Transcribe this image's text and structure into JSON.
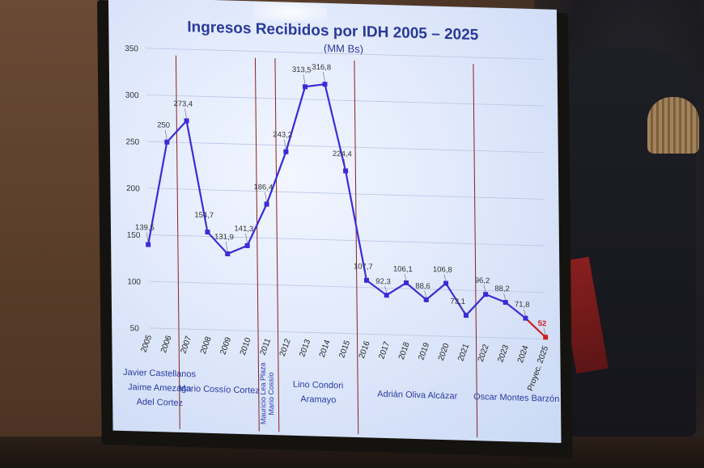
{
  "chart_data": {
    "type": "line",
    "title": "Ingresos Recibidos por IDH 2005 – 2025",
    "subtitle": "(MM Bs)",
    "xlabel": "",
    "ylabel": "",
    "ylim": [
      50,
      350
    ],
    "yticks": [
      "350",
      "300",
      "250",
      "200",
      "150",
      "100",
      "50"
    ],
    "categories": [
      "2005",
      "2006",
      "2007",
      "2008",
      "2009",
      "2010",
      "2011",
      "2012",
      "2013",
      "2014",
      "2015",
      "2016",
      "2017",
      "2018",
      "2019",
      "2020",
      "2021",
      "2022",
      "2023",
      "2024",
      "2025"
    ],
    "category_labels": [
      "2005",
      "2006",
      "2007",
      "2008",
      "2009",
      "2010",
      "2011",
      "2012",
      "2013",
      "2014",
      "2015",
      "2016",
      "2017",
      "2018",
      "2019",
      "2020",
      "2021",
      "2022",
      "2023",
      "2024",
      "Proyec. 2025"
    ],
    "values": [
      139.5,
      250,
      273.4,
      154.7,
      131.9,
      141.3,
      186.4,
      243.2,
      313.5,
      316.8,
      224.4,
      107.7,
      92.3,
      106.1,
      88.6,
      106.8,
      73.1,
      96.2,
      88.2,
      71.8,
      52
    ],
    "data_labels": [
      "139,5",
      "250",
      "273,4",
      "154,7",
      "131,9",
      "141,3",
      "186,4",
      "243,2",
      "313,5",
      "316,8",
      "224,4",
      "107,7",
      "92,3",
      "106,1",
      "88,6",
      "106,8",
      "73,1",
      "96,2",
      "88,2",
      "71,8",
      "52"
    ],
    "series_color": "#3b2bd6",
    "projection_color": "#cc1f1f",
    "grid": true,
    "legend": "none",
    "periods": [
      {
        "lines": [
          "Javier Castellanos",
          "Jaime Amezaga",
          "Adel Cortez"
        ],
        "from": "2005",
        "to": "2006"
      },
      {
        "lines": [
          "Mario Cossío Cortez"
        ],
        "from": "2007",
        "to": "2010"
      },
      {
        "lines": [
          "Mauricio Lea Plaza",
          "Mario Cossío"
        ],
        "from": "2011",
        "to": "2011",
        "vertical": true
      },
      {
        "lines": [
          "Lino Condori",
          "Aramayo"
        ],
        "from": "2012",
        "to": "2015"
      },
      {
        "lines": [
          "Adrián Oliva Alcázar"
        ],
        "from": "2016",
        "to": "2021"
      },
      {
        "lines": [
          "Oscar Montes Barzón"
        ],
        "from": "2022",
        "to": "2025"
      }
    ],
    "period_divider_color": "#8a2020"
  }
}
